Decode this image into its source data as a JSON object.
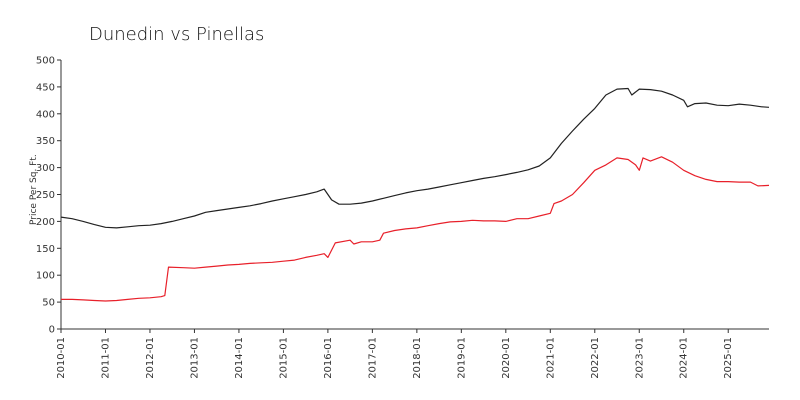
{
  "chart_data": {
    "type": "line",
    "title": "Dunedin vs Pinellas",
    "xlabel": "",
    "ylabel": "Price Per Sq. Ft.",
    "ylim": [
      0,
      500
    ],
    "yticks": [
      0,
      50,
      100,
      150,
      200,
      250,
      300,
      350,
      400,
      450,
      500
    ],
    "xlim": [
      "2010-01",
      "2025-12"
    ],
    "xticks": [
      "2010-01",
      "2011-01",
      "2012-01",
      "2013-01",
      "2014-01",
      "2015-01",
      "2016-01",
      "2017-01",
      "2018-01",
      "2019-01",
      "2020-01",
      "2021-01",
      "2022-01",
      "2023-01",
      "2024-01",
      "2025-01"
    ],
    "grid": false,
    "legend": "none",
    "series": [
      {
        "color": "#222222",
        "points": [
          [
            "2010-01",
            208
          ],
          [
            "2010-04",
            205
          ],
          [
            "2010-07",
            200
          ],
          [
            "2010-10",
            194
          ],
          [
            "2011-01",
            189
          ],
          [
            "2011-04",
            188
          ],
          [
            "2011-07",
            190
          ],
          [
            "2011-10",
            192
          ],
          [
            "2012-01",
            193
          ],
          [
            "2012-04",
            196
          ],
          [
            "2012-07",
            200
          ],
          [
            "2012-10",
            205
          ],
          [
            "2013-01",
            210
          ],
          [
            "2013-04",
            217
          ],
          [
            "2013-07",
            220
          ],
          [
            "2013-10",
            223
          ],
          [
            "2014-01",
            226
          ],
          [
            "2014-04",
            229
          ],
          [
            "2014-07",
            233
          ],
          [
            "2014-10",
            238
          ],
          [
            "2015-01",
            242
          ],
          [
            "2015-04",
            246
          ],
          [
            "2015-07",
            250
          ],
          [
            "2015-10",
            255
          ],
          [
            "2015-12",
            260
          ],
          [
            "2016-02",
            240
          ],
          [
            "2016-04",
            232
          ],
          [
            "2016-07",
            232
          ],
          [
            "2016-10",
            234
          ],
          [
            "2017-01",
            238
          ],
          [
            "2017-04",
            243
          ],
          [
            "2017-07",
            248
          ],
          [
            "2017-10",
            253
          ],
          [
            "2018-01",
            257
          ],
          [
            "2018-04",
            260
          ],
          [
            "2018-07",
            264
          ],
          [
            "2018-10",
            268
          ],
          [
            "2019-01",
            272
          ],
          [
            "2019-04",
            276
          ],
          [
            "2019-07",
            280
          ],
          [
            "2019-10",
            283
          ],
          [
            "2020-01",
            287
          ],
          [
            "2020-04",
            291
          ],
          [
            "2020-07",
            296
          ],
          [
            "2020-10",
            303
          ],
          [
            "2021-01",
            318
          ],
          [
            "2021-04",
            345
          ],
          [
            "2021-07",
            368
          ],
          [
            "2021-10",
            390
          ],
          [
            "2022-01",
            410
          ],
          [
            "2022-04",
            435
          ],
          [
            "2022-07",
            446
          ],
          [
            "2022-10",
            447
          ],
          [
            "2022-11",
            435
          ],
          [
            "2023-01",
            446
          ],
          [
            "2023-04",
            445
          ],
          [
            "2023-07",
            442
          ],
          [
            "2023-10",
            435
          ],
          [
            "2024-01",
            425
          ],
          [
            "2024-02",
            413
          ],
          [
            "2024-04",
            419
          ],
          [
            "2024-07",
            420
          ],
          [
            "2024-10",
            416
          ],
          [
            "2025-01",
            415
          ],
          [
            "2025-04",
            418
          ],
          [
            "2025-07",
            416
          ],
          [
            "2025-10",
            413
          ],
          [
            "2025-12",
            412
          ]
        ]
      },
      {
        "color": "#e8202a",
        "points": [
          [
            "2010-01",
            55
          ],
          [
            "2010-04",
            55
          ],
          [
            "2010-07",
            54
          ],
          [
            "2010-10",
            53
          ],
          [
            "2011-01",
            52
          ],
          [
            "2011-04",
            53
          ],
          [
            "2011-07",
            55
          ],
          [
            "2011-10",
            57
          ],
          [
            "2012-01",
            58
          ],
          [
            "2012-04",
            60
          ],
          [
            "2012-05",
            62
          ],
          [
            "2012-06",
            115
          ],
          [
            "2012-10",
            114
          ],
          [
            "2013-01",
            113
          ],
          [
            "2013-04",
            115
          ],
          [
            "2013-07",
            117
          ],
          [
            "2013-10",
            119
          ],
          [
            "2014-01",
            120
          ],
          [
            "2014-04",
            122
          ],
          [
            "2014-07",
            123
          ],
          [
            "2014-10",
            124
          ],
          [
            "2015-01",
            126
          ],
          [
            "2015-04",
            128
          ],
          [
            "2015-07",
            133
          ],
          [
            "2015-10",
            137
          ],
          [
            "2015-12",
            140
          ],
          [
            "2016-01",
            133
          ],
          [
            "2016-03",
            160
          ],
          [
            "2016-07",
            165
          ],
          [
            "2016-08",
            158
          ],
          [
            "2016-10",
            162
          ],
          [
            "2017-01",
            162
          ],
          [
            "2017-03",
            165
          ],
          [
            "2017-04",
            178
          ],
          [
            "2017-07",
            183
          ],
          [
            "2017-10",
            186
          ],
          [
            "2018-01",
            188
          ],
          [
            "2018-04",
            192
          ],
          [
            "2018-07",
            196
          ],
          [
            "2018-10",
            199
          ],
          [
            "2019-01",
            200
          ],
          [
            "2019-04",
            202
          ],
          [
            "2019-07",
            201
          ],
          [
            "2019-10",
            201
          ],
          [
            "2020-01",
            200
          ],
          [
            "2020-04",
            205
          ],
          [
            "2020-07",
            205
          ],
          [
            "2020-10",
            210
          ],
          [
            "2021-01",
            215
          ],
          [
            "2021-02",
            233
          ],
          [
            "2021-04",
            238
          ],
          [
            "2021-07",
            250
          ],
          [
            "2021-10",
            272
          ],
          [
            "2022-01",
            295
          ],
          [
            "2022-04",
            305
          ],
          [
            "2022-07",
            318
          ],
          [
            "2022-10",
            315
          ],
          [
            "2022-12",
            305
          ],
          [
            "2023-01",
            295
          ],
          [
            "2023-02",
            318
          ],
          [
            "2023-04",
            312
          ],
          [
            "2023-07",
            320
          ],
          [
            "2023-10",
            310
          ],
          [
            "2024-01",
            295
          ],
          [
            "2024-04",
            285
          ],
          [
            "2024-07",
            278
          ],
          [
            "2024-10",
            274
          ],
          [
            "2025-01",
            274
          ],
          [
            "2025-04",
            273
          ],
          [
            "2025-07",
            273
          ],
          [
            "2025-09",
            266
          ],
          [
            "2025-12",
            267
          ]
        ]
      }
    ]
  }
}
